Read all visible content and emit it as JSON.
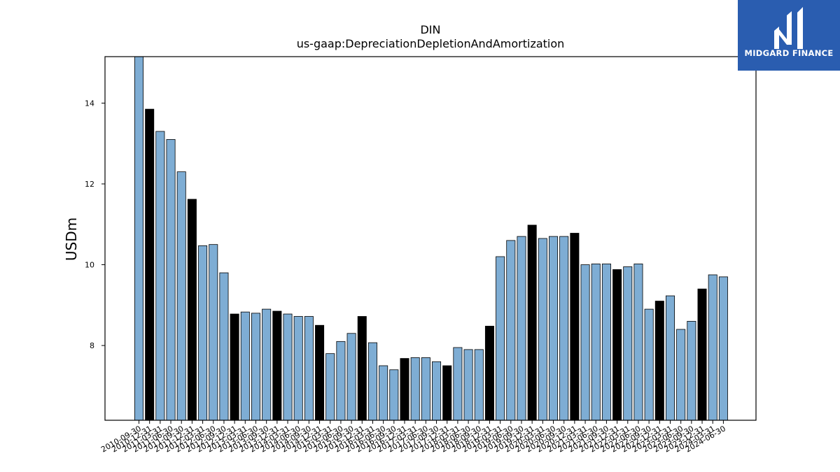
{
  "chart_data": {
    "type": "bar",
    "title": "DIN",
    "subtitle": "us-gaap:DepreciationDepletionAndAmortization",
    "xlabel": "",
    "ylabel": "USDm",
    "ylim": [
      6.15,
      15.15
    ],
    "yticks": [
      8,
      10,
      12,
      14
    ],
    "grid": false,
    "colors": {
      "default": "#7eadd4",
      "highlight": "#000000",
      "edge": "#000000"
    },
    "categories": [
      "2010-09-30",
      "2010-12-31",
      "2011-03-31",
      "2011-06-30",
      "2011-09-30",
      "2011-12-31",
      "2012-03-31",
      "2012-06-30",
      "2012-09-30",
      "2012-12-31",
      "2013-03-31",
      "2013-06-30",
      "2013-09-30",
      "2013-12-31",
      "2014-03-31",
      "2014-06-30",
      "2014-09-30",
      "2014-12-31",
      "2015-03-31",
      "2015-06-30",
      "2015-09-30",
      "2015-12-31",
      "2016-03-31",
      "2016-06-30",
      "2016-09-30",
      "2016-12-31",
      "2017-03-31",
      "2017-06-30",
      "2017-09-30",
      "2017-12-31",
      "2018-03-31",
      "2018-06-30",
      "2018-09-30",
      "2018-12-31",
      "2019-03-31",
      "2019-06-30",
      "2019-09-30",
      "2019-12-31",
      "2020-03-31",
      "2020-06-30",
      "2020-09-30",
      "2020-12-31",
      "2021-03-31",
      "2021-06-30",
      "2021-09-30",
      "2021-12-31",
      "2022-03-31",
      "2022-06-30",
      "2022-09-30",
      "2022-12-31",
      "2023-03-31",
      "2023-06-30",
      "2023-09-30",
      "2023-12-31",
      "2024-03-31",
      "2024-06-30"
    ],
    "values": [
      15.2,
      13.85,
      13.3,
      13.1,
      12.3,
      11.62,
      10.47,
      10.5,
      9.8,
      8.78,
      8.83,
      8.8,
      8.9,
      8.85,
      8.78,
      8.72,
      8.72,
      8.5,
      7.8,
      8.1,
      8.3,
      8.72,
      8.07,
      7.5,
      7.4,
      7.68,
      7.7,
      7.7,
      7.6,
      7.5,
      7.95,
      7.9,
      7.9,
      8.48,
      10.2,
      10.6,
      10.7,
      10.98,
      10.65,
      10.7,
      10.7,
      10.78,
      10.0,
      10.02,
      10.02,
      9.88,
      9.95,
      10.02,
      8.9,
      9.1,
      9.23,
      8.4,
      8.6,
      9.4,
      9.75,
      9.7
    ],
    "highlight": [
      false,
      true,
      false,
      false,
      false,
      true,
      false,
      false,
      false,
      true,
      false,
      false,
      false,
      true,
      false,
      false,
      false,
      true,
      false,
      false,
      false,
      true,
      false,
      false,
      false,
      true,
      false,
      false,
      false,
      true,
      false,
      false,
      false,
      true,
      false,
      false,
      false,
      true,
      false,
      false,
      false,
      true,
      false,
      false,
      false,
      true,
      false,
      false,
      false,
      true,
      false,
      false,
      false,
      true,
      false,
      false
    ]
  },
  "branding": {
    "name": "MIDGARD FINANCE",
    "color": "#2a5db0",
    "icon": "midgard-logo-icon"
  }
}
